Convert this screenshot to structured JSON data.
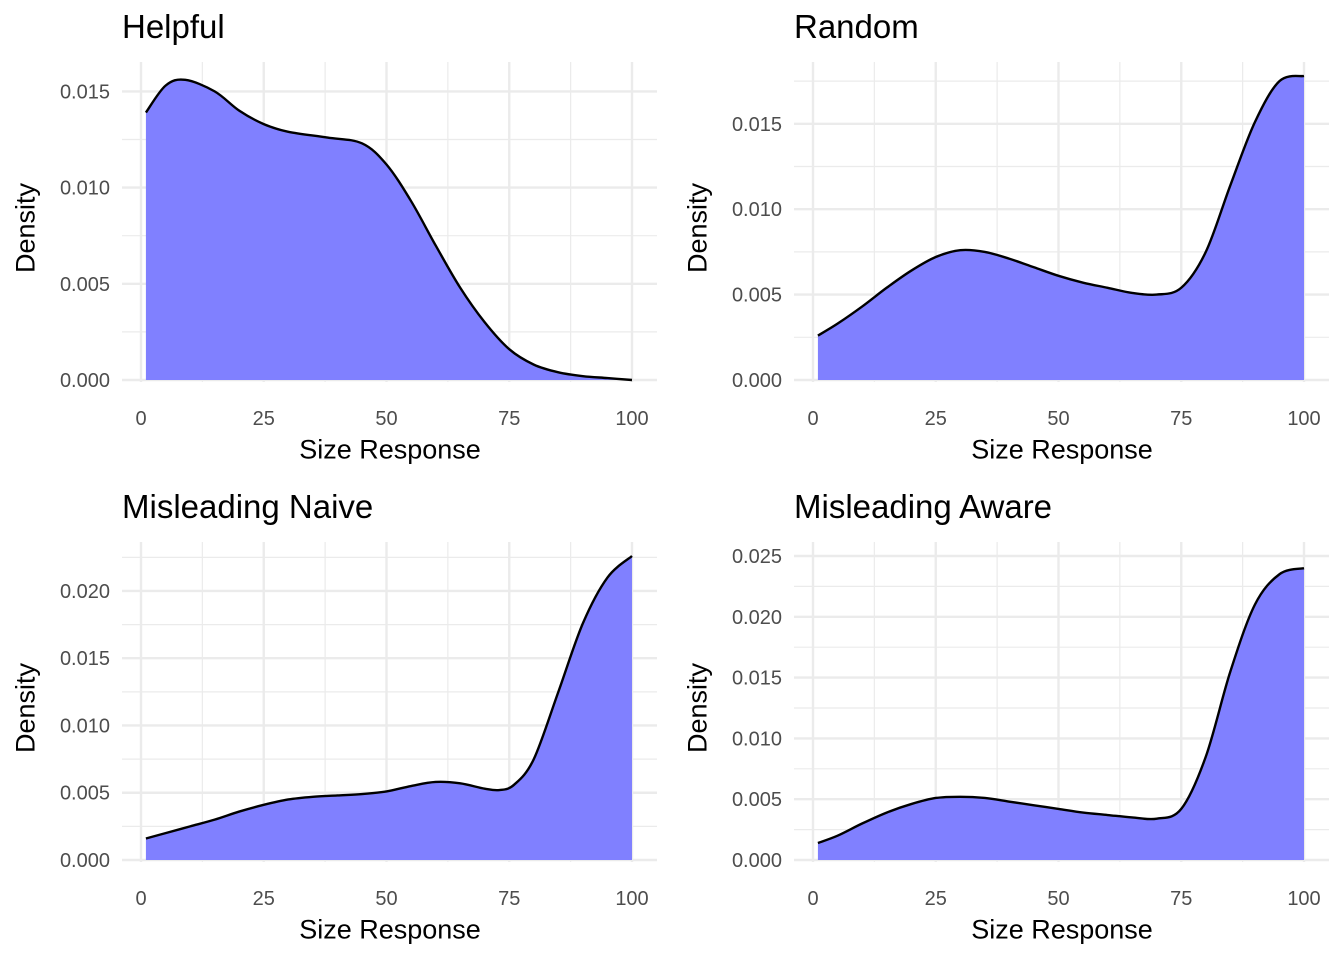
{
  "figure": {
    "xlabel": "Size Response",
    "ylabel": "Density",
    "fill_color": "#8080ff",
    "line_color": "#000000",
    "grid_color": "#ebebeb"
  },
  "chart_data": [
    {
      "type": "area",
      "title": "Helpful",
      "xlabel": "Size Response",
      "ylabel": "Density",
      "xlim": [
        1,
        100
      ],
      "ylim": [
        0,
        0.0158
      ],
      "x_ticks": [
        0,
        25,
        50,
        75,
        100
      ],
      "y_ticks": [
        0.0,
        0.005,
        0.01,
        0.015
      ],
      "y_tick_labels": [
        "0.000",
        "0.005",
        "0.010",
        "0.015"
      ],
      "grid": true,
      "x": [
        1,
        5,
        9,
        15,
        20,
        25,
        30,
        38,
        45,
        50,
        55,
        60,
        65,
        70,
        75,
        80,
        85,
        90,
        95,
        100
      ],
      "y": [
        0.0139,
        0.0153,
        0.0156,
        0.015,
        0.014,
        0.0133,
        0.0129,
        0.0126,
        0.0123,
        0.0112,
        0.0093,
        0.007,
        0.0048,
        0.003,
        0.0016,
        0.0008,
        0.0004,
        0.0002,
        0.0001,
        0.0
      ]
    },
    {
      "type": "area",
      "title": "Random",
      "xlabel": "Size Response",
      "ylabel": "Density",
      "xlim": [
        1,
        100
      ],
      "ylim": [
        0,
        0.0178
      ],
      "x_ticks": [
        0,
        25,
        50,
        75,
        100
      ],
      "y_ticks": [
        0.0,
        0.005,
        0.01,
        0.015
      ],
      "y_tick_labels": [
        "0.000",
        "0.005",
        "0.010",
        "0.015"
      ],
      "grid": true,
      "x": [
        1,
        5,
        10,
        15,
        20,
        25,
        30,
        35,
        40,
        45,
        50,
        55,
        60,
        65,
        70,
        75,
        80,
        85,
        90,
        95,
        100
      ],
      "y": [
        0.0026,
        0.0033,
        0.0043,
        0.0054,
        0.0064,
        0.0072,
        0.0076,
        0.0075,
        0.0071,
        0.0066,
        0.0061,
        0.0057,
        0.0054,
        0.0051,
        0.005,
        0.0054,
        0.0075,
        0.0114,
        0.0151,
        0.0175,
        0.0178
      ]
    },
    {
      "type": "area",
      "title": "Misleading Naive",
      "xlabel": "Size Response",
      "ylabel": "Density",
      "xlim": [
        1,
        100
      ],
      "ylim": [
        0,
        0.0226
      ],
      "x_ticks": [
        0,
        25,
        50,
        75,
        100
      ],
      "y_ticks": [
        0.0,
        0.005,
        0.01,
        0.015,
        0.02
      ],
      "y_tick_labels": [
        "0.000",
        "0.005",
        "0.010",
        "0.015",
        "0.020"
      ],
      "grid": true,
      "x": [
        1,
        5,
        10,
        15,
        20,
        25,
        30,
        35,
        40,
        45,
        50,
        55,
        60,
        65,
        70,
        73,
        76,
        80,
        85,
        90,
        95,
        100
      ],
      "y": [
        0.0016,
        0.002,
        0.0025,
        0.003,
        0.0036,
        0.0041,
        0.0045,
        0.0047,
        0.0048,
        0.0049,
        0.0051,
        0.0055,
        0.0058,
        0.0057,
        0.0053,
        0.0052,
        0.0056,
        0.0075,
        0.0125,
        0.0176,
        0.021,
        0.0226
      ]
    },
    {
      "type": "area",
      "title": "Misleading Aware",
      "xlabel": "Size Response",
      "ylabel": "Density",
      "xlim": [
        1,
        100
      ],
      "ylim": [
        0,
        0.025
      ],
      "x_ticks": [
        0,
        25,
        50,
        75,
        100
      ],
      "y_ticks": [
        0.0,
        0.005,
        0.01,
        0.015,
        0.02,
        0.025
      ],
      "y_tick_labels": [
        "0.000",
        "0.005",
        "0.010",
        "0.015",
        "0.020",
        "0.025"
      ],
      "grid": true,
      "x": [
        1,
        5,
        10,
        15,
        20,
        25,
        30,
        35,
        40,
        45,
        50,
        55,
        60,
        65,
        70,
        75,
        80,
        85,
        90,
        95,
        100
      ],
      "y": [
        0.0014,
        0.002,
        0.003,
        0.0039,
        0.0046,
        0.0051,
        0.0052,
        0.0051,
        0.0048,
        0.0045,
        0.0042,
        0.0039,
        0.0037,
        0.0035,
        0.0034,
        0.0042,
        0.0085,
        0.0155,
        0.021,
        0.0235,
        0.024
      ]
    }
  ]
}
